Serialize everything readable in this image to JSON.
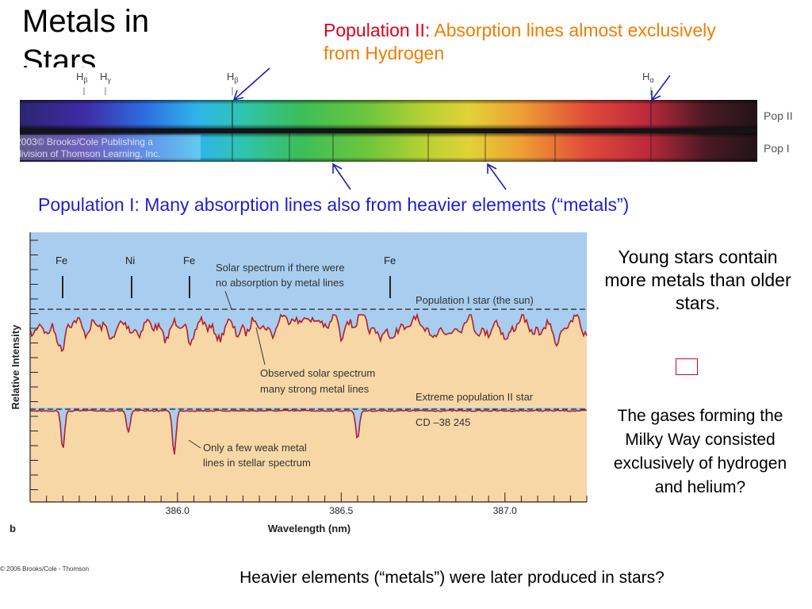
{
  "slide": {
    "title": "Metals in Stars",
    "pop2_label": "Population II: ",
    "pop2_desc": "Absorption lines almost exclusively from Hydrogen",
    "pop1_label": "Population I: ",
    "pop1_desc": "Many absorption lines also from heavier elements (“metals”)",
    "young_stars": "Young stars contain more metals than older stars.",
    "gases_question": "The gases forming the Milky Way consisted exclusively of hydrogen and helium?",
    "heavier_question": "Heavier elements (“metals”) were later produced in stars?",
    "copyright_bottom": "© 2006 Brooks/Cole - Thomson"
  },
  "spectrum": {
    "hbeta_left": "H",
    "hbeta_left_sub": "β",
    "hgamma": "H",
    "hgamma_sub": "γ",
    "hbeta_mid": "H",
    "hbeta_mid_sub": "β",
    "halpha": "H",
    "halpha_sub": "α",
    "band_top_label": "Pop II",
    "band_bottom_label": "Pop I",
    "watermark_line1": "2003© Brooks/Cole Publishing a",
    "watermark_line2": "division of Thomson Learning, Inc."
  },
  "chart": {
    "fe1": "Fe",
    "ni": "Ni",
    "fe2": "Fe",
    "fe3": "Fe",
    "annot_solar_1": "Solar spectrum if there were",
    "annot_solar_2": "no absorption by metal lines",
    "pop1_star": "Population I star (the sun)",
    "observed_1": "Observed solar spectrum",
    "observed_2": "many strong metal lines",
    "extreme_pop2": "Extreme population II star",
    "cd_star": "CD –38 245",
    "weak_1": "Only a few weak metal",
    "weak_2": "lines in stellar spectrum",
    "ylabel": "Relative Intensity",
    "xlabel": "Wavelength (nm)",
    "panel_letter": "b",
    "colors": {
      "sky": "#a8cdef",
      "sand": "#f8d7a6",
      "line": "#b11f2e"
    }
  },
  "chart_data": {
    "type": "line",
    "xlabel": "Wavelength (nm)",
    "ylabel": "Relative Intensity",
    "xlim": [
      385.55,
      387.25
    ],
    "x_ticks": [
      386.0,
      386.5,
      387.0
    ],
    "x_tick_labels": [
      "386.0",
      "386.5",
      "387.0"
    ],
    "series": [
      {
        "name": "Population I star (the sun)"
      },
      {
        "name": "Extreme population II star"
      }
    ],
    "line_ids": [
      "Fe",
      "Ni",
      "Fe",
      "Fe"
    ],
    "line_wavelengths": [
      385.65,
      385.85,
      385.99,
      386.55
    ]
  }
}
